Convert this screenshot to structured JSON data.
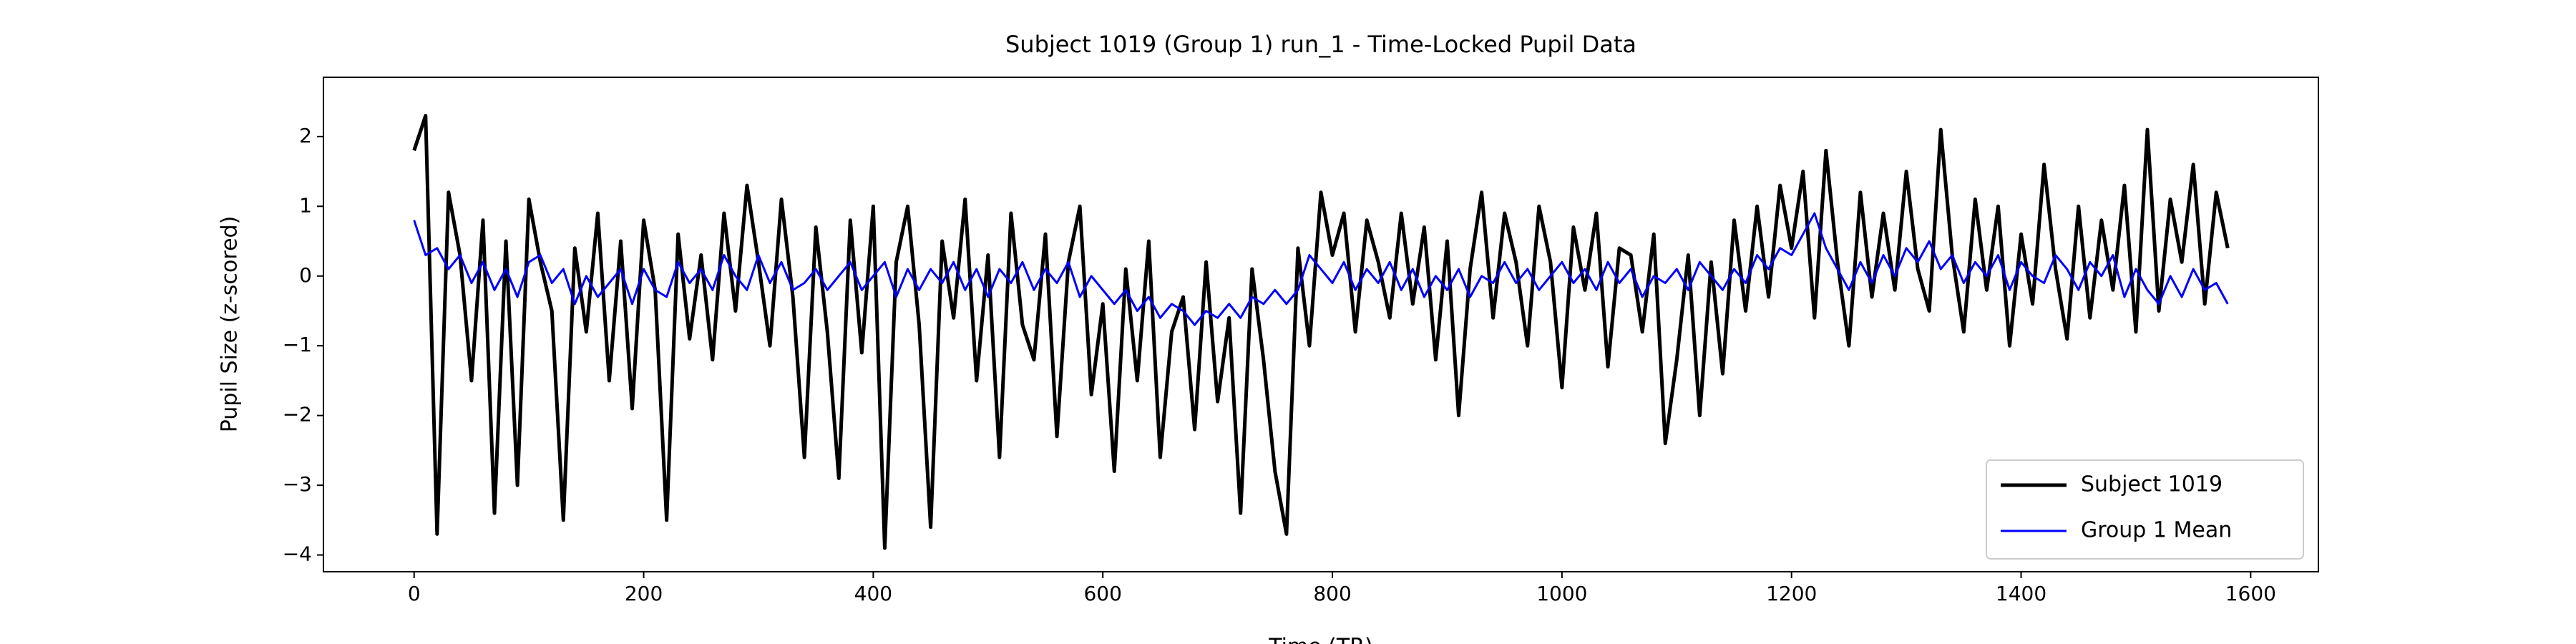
{
  "chart_data": {
    "type": "line",
    "title": "Subject 1019 (Group 1) run_1 - Time-Locked Pupil Data",
    "x_label": "Time (TR)",
    "y_label": "Pupil Size (z-scored)",
    "x": [
      0,
      10,
      20,
      30,
      40,
      50,
      60,
      70,
      80,
      90,
      100,
      110,
      120,
      130,
      140,
      150,
      160,
      170,
      180,
      190,
      200,
      210,
      220,
      230,
      240,
      250,
      260,
      270,
      280,
      290,
      300,
      310,
      320,
      330,
      340,
      350,
      360,
      370,
      380,
      390,
      400,
      410,
      420,
      430,
      440,
      450,
      460,
      470,
      480,
      490,
      500,
      510,
      520,
      530,
      540,
      550,
      560,
      570,
      580,
      590,
      600,
      610,
      620,
      630,
      640,
      650,
      660,
      670,
      680,
      690,
      700,
      710,
      720,
      730,
      740,
      750,
      760,
      770,
      780,
      790,
      800,
      810,
      820,
      830,
      840,
      850,
      860,
      870,
      880,
      890,
      900,
      910,
      920,
      930,
      940,
      950,
      960,
      970,
      980,
      990,
      1000,
      1010,
      1020,
      1030,
      1040,
      1050,
      1060,
      1070,
      1080,
      1090,
      1100,
      1110,
      1120,
      1130,
      1140,
      1150,
      1160,
      1170,
      1180,
      1190,
      1200,
      1210,
      1220,
      1230,
      1240,
      1250,
      1260,
      1270,
      1280,
      1290,
      1300,
      1310,
      1320,
      1330,
      1340,
      1350,
      1360,
      1370,
      1380,
      1390,
      1400,
      1410,
      1420,
      1430,
      1440,
      1450,
      1460,
      1470,
      1480,
      1490,
      1500,
      1510,
      1520,
      1530,
      1540,
      1550,
      1560,
      1570,
      1580
    ],
    "series": [
      {
        "name": "Subject 1019",
        "color": "#000000",
        "width": 5,
        "values": [
          1.8,
          2.3,
          -3.7,
          1.2,
          0.3,
          -1.5,
          0.8,
          -3.4,
          0.5,
          -3.0,
          1.1,
          0.2,
          -0.5,
          -3.5,
          0.4,
          -0.8,
          0.9,
          -1.5,
          0.5,
          -1.9,
          0.8,
          -0.2,
          -3.5,
          0.6,
          -0.9,
          0.3,
          -1.2,
          0.9,
          -0.5,
          1.3,
          0.2,
          -1.0,
          1.1,
          -0.3,
          -2.6,
          0.7,
          -0.8,
          -2.9,
          0.8,
          -1.1,
          1.0,
          -3.9,
          0.2,
          1.0,
          -0.7,
          -3.6,
          0.5,
          -0.6,
          1.1,
          -1.5,
          0.3,
          -2.6,
          0.9,
          -0.7,
          -1.2,
          0.6,
          -2.3,
          0.2,
          1.0,
          -1.7,
          -0.4,
          -2.8,
          0.1,
          -1.5,
          0.5,
          -2.6,
          -0.8,
          -0.3,
          -2.2,
          0.2,
          -1.8,
          -0.6,
          -3.4,
          0.1,
          -1.2,
          -2.8,
          -3.7,
          0.4,
          -1.0,
          1.2,
          0.3,
          0.9,
          -0.8,
          0.8,
          0.2,
          -0.6,
          0.9,
          -0.4,
          0.7,
          -1.2,
          0.5,
          -2.0,
          0.1,
          1.2,
          -0.6,
          0.9,
          0.2,
          -1.0,
          1.0,
          0.2,
          -1.6,
          0.7,
          -0.2,
          0.9,
          -1.3,
          0.4,
          0.3,
          -0.8,
          0.6,
          -2.4,
          -1.2,
          0.3,
          -2.0,
          0.2,
          -1.4,
          0.8,
          -0.5,
          1.0,
          -0.3,
          1.3,
          0.4,
          1.5,
          -0.6,
          1.8,
          0.2,
          -1.0,
          1.2,
          -0.3,
          0.9,
          -0.2,
          1.5,
          0.1,
          -0.5,
          2.1,
          0.3,
          -0.8,
          1.1,
          -0.2,
          1.0,
          -1.0,
          0.6,
          -0.4,
          1.6,
          0.1,
          -0.9,
          1.0,
          -0.6,
          0.8,
          -0.2,
          1.3,
          -0.8,
          2.1,
          -0.5,
          1.1,
          0.2,
          1.6,
          -0.4,
          1.2,
          0.4
        ]
      },
      {
        "name": "Group 1 Mean",
        "color": "#0000ff",
        "width": 3,
        "values": [
          0.8,
          0.3,
          0.4,
          0.1,
          0.3,
          -0.1,
          0.2,
          -0.2,
          0.1,
          -0.3,
          0.2,
          0.3,
          -0.1,
          0.1,
          -0.4,
          0.0,
          -0.3,
          -0.1,
          0.1,
          -0.4,
          0.1,
          -0.2,
          -0.3,
          0.2,
          -0.1,
          0.1,
          -0.2,
          0.3,
          0.0,
          -0.2,
          0.3,
          -0.1,
          0.2,
          -0.2,
          -0.1,
          0.1,
          -0.2,
          0.0,
          0.2,
          -0.2,
          0.0,
          0.2,
          -0.3,
          0.1,
          -0.2,
          0.1,
          -0.1,
          0.2,
          -0.2,
          0.1,
          -0.3,
          0.1,
          -0.1,
          0.2,
          -0.2,
          0.1,
          -0.1,
          0.2,
          -0.3,
          0.0,
          -0.2,
          -0.4,
          -0.2,
          -0.5,
          -0.3,
          -0.6,
          -0.4,
          -0.5,
          -0.7,
          -0.5,
          -0.6,
          -0.4,
          -0.6,
          -0.3,
          -0.4,
          -0.2,
          -0.4,
          -0.2,
          0.3,
          0.1,
          -0.1,
          0.2,
          -0.2,
          0.1,
          -0.1,
          0.2,
          -0.2,
          0.1,
          -0.3,
          0.0,
          -0.2,
          0.1,
          -0.3,
          0.0,
          -0.1,
          0.2,
          -0.1,
          0.1,
          -0.2,
          0.0,
          0.2,
          -0.1,
          0.1,
          -0.2,
          0.2,
          -0.1,
          0.1,
          -0.3,
          0.0,
          -0.1,
          0.1,
          -0.2,
          0.2,
          0.0,
          -0.2,
          0.1,
          -0.1,
          0.3,
          0.1,
          0.4,
          0.3,
          0.6,
          0.9,
          0.4,
          0.1,
          -0.2,
          0.2,
          -0.1,
          0.3,
          0.0,
          0.4,
          0.2,
          0.5,
          0.1,
          0.3,
          -0.1,
          0.2,
          0.0,
          0.3,
          -0.2,
          0.2,
          0.0,
          -0.1,
          0.3,
          0.1,
          -0.2,
          0.2,
          0.0,
          0.3,
          -0.3,
          0.1,
          -0.2,
          -0.4,
          0.0,
          -0.3,
          0.1,
          -0.2,
          -0.1,
          -0.4
        ]
      }
    ],
    "xlim": [
      -79,
      1659
    ],
    "ylim": [
      -4.24,
      2.85
    ],
    "xticks": [
      0,
      200,
      400,
      600,
      800,
      1000,
      1200,
      1400,
      1600
    ],
    "yticks": [
      {
        "value": -4,
        "label": "−4"
      },
      {
        "value": -3,
        "label": "−3"
      },
      {
        "value": -2,
        "label": "−2"
      },
      {
        "value": -1,
        "label": "−1"
      },
      0,
      1,
      2
    ],
    "grid": false,
    "legend": "lower right"
  }
}
